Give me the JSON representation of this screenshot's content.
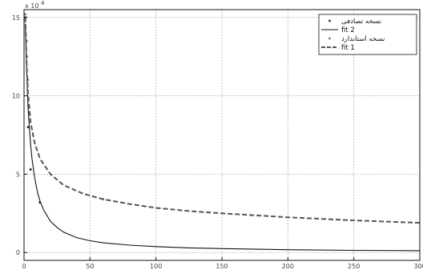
{
  "chart_data": {
    "type": "line",
    "title": "",
    "xlabel": "",
    "ylabel": "",
    "xlim": [
      0,
      300
    ],
    "ylim": [
      -0.5,
      15.5
    ],
    "y_multiplier_label": "x 10",
    "y_multiplier_exponent": "4",
    "x_ticks": [
      0,
      50,
      100,
      150,
      200,
      250,
      300
    ],
    "y_ticks": [
      0,
      5,
      10,
      15
    ],
    "grid": true,
    "legend_position": "top-right",
    "series": [
      {
        "name": "نسخه تصادفی",
        "style": "points",
        "color": "#222222",
        "x": [
          1,
          2,
          3,
          5,
          12
        ],
        "y": [
          15,
          12.5,
          8.0,
          5.3,
          3.2
        ]
      },
      {
        "name": "fit 2",
        "style": "solid",
        "color": "#111111",
        "x": [
          1,
          2,
          3,
          4,
          5,
          6,
          8,
          10,
          12,
          15,
          20,
          25,
          30,
          40,
          50,
          60,
          80,
          100,
          125,
          150,
          200,
          250,
          300
        ],
        "y": [
          14.6,
          11.5,
          9.4,
          8.0,
          6.9,
          6.0,
          4.8,
          3.9,
          3.3,
          2.7,
          2.0,
          1.6,
          1.3,
          0.95,
          0.75,
          0.62,
          0.47,
          0.38,
          0.3,
          0.25,
          0.18,
          0.14,
          0.12
        ]
      },
      {
        "name": "نسخه استاندارد",
        "style": "points",
        "color": "#777777",
        "x": [
          1,
          2,
          3,
          60
        ],
        "y": [
          15.2,
          13.5,
          11.0,
          3.4
        ]
      },
      {
        "name": "fit 1",
        "style": "dashed",
        "color": "#555555",
        "x": [
          1,
          2,
          3,
          5,
          8,
          12,
          20,
          30,
          45,
          60,
          80,
          100,
          125,
          150,
          200,
          250,
          300
        ],
        "y": [
          15.0,
          12.0,
          10.2,
          8.3,
          7.0,
          6.0,
          5.0,
          4.3,
          3.75,
          3.4,
          3.1,
          2.85,
          2.65,
          2.5,
          2.25,
          2.05,
          1.9
        ]
      }
    ]
  }
}
